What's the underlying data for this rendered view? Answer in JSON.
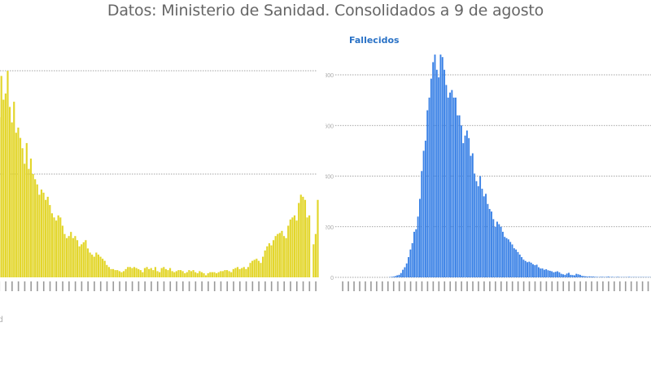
{
  "page": {
    "title": "Datos: Ministerio de Sanidad. Consolidados a 9 de agosto",
    "left_footer": "d"
  },
  "chart_data": [
    {
      "type": "bar",
      "title": "",
      "xlabel": "",
      "ylabel": "",
      "color": "#e3d62c",
      "grid": true,
      "gridline_units": [
        1,
        2
      ],
      "ylim": [
        0,
        2.1
      ],
      "note": "values in gridline units; y-axis labels cropped out of view",
      "tick_label_every": 3,
      "values": [
        1.55,
        1.95,
        1.72,
        1.78,
        2.0,
        1.65,
        1.5,
        1.7,
        1.4,
        1.45,
        1.35,
        1.25,
        1.1,
        1.3,
        1.05,
        1.15,
        1.0,
        0.95,
        0.9,
        0.8,
        0.85,
        0.82,
        0.75,
        0.78,
        0.7,
        0.62,
        0.58,
        0.55,
        0.6,
        0.58,
        0.5,
        0.42,
        0.38,
        0.4,
        0.44,
        0.38,
        0.4,
        0.36,
        0.3,
        0.32,
        0.34,
        0.36,
        0.28,
        0.24,
        0.22,
        0.2,
        0.24,
        0.22,
        0.2,
        0.18,
        0.16,
        0.12,
        0.1,
        0.08,
        0.08,
        0.07,
        0.07,
        0.06,
        0.05,
        0.06,
        0.08,
        0.1,
        0.1,
        0.09,
        0.1,
        0.09,
        0.08,
        0.07,
        0.05,
        0.09,
        0.1,
        0.08,
        0.09,
        0.07,
        0.1,
        0.06,
        0.05,
        0.09,
        0.1,
        0.08,
        0.07,
        0.09,
        0.06,
        0.05,
        0.06,
        0.07,
        0.07,
        0.06,
        0.04,
        0.05,
        0.07,
        0.06,
        0.07,
        0.05,
        0.04,
        0.06,
        0.05,
        0.04,
        0.02,
        0.04,
        0.05,
        0.05,
        0.05,
        0.04,
        0.05,
        0.06,
        0.06,
        0.07,
        0.07,
        0.06,
        0.05,
        0.08,
        0.09,
        0.1,
        0.08,
        0.09,
        0.1,
        0.08,
        0.1,
        0.14,
        0.16,
        0.17,
        0.18,
        0.16,
        0.14,
        0.2,
        0.26,
        0.3,
        0.33,
        0.31,
        0.36,
        0.4,
        0.42,
        0.43,
        0.45,
        0.4,
        0.38,
        0.5,
        0.56,
        0.58,
        0.6,
        0.55,
        0.72,
        0.8,
        0.78,
        0.75,
        0.58,
        0.6,
        0.0,
        0.32,
        0.42,
        0.75
      ]
    },
    {
      "type": "bar",
      "title": "Fallecidos",
      "xlabel": "",
      "ylabel": "",
      "color": "#3b82e6",
      "grid": true,
      "yticks": [
        0,
        200,
        400,
        600,
        800
      ],
      "ylim": [
        0,
        900
      ],
      "tick_label_every": 3,
      "values": [
        0,
        0,
        0,
        0,
        0,
        0,
        0,
        0,
        0,
        0,
        0,
        0,
        0,
        0,
        0,
        0,
        0,
        0,
        0,
        0,
        0,
        0,
        0,
        0,
        0,
        1,
        2,
        3,
        5,
        8,
        10,
        17,
        30,
        40,
        55,
        80,
        110,
        135,
        180,
        190,
        240,
        310,
        420,
        500,
        540,
        660,
        710,
        785,
        850,
        880,
        820,
        790,
        880,
        870,
        820,
        760,
        710,
        730,
        740,
        710,
        710,
        640,
        640,
        600,
        530,
        560,
        580,
        550,
        480,
        490,
        410,
        380,
        360,
        400,
        350,
        320,
        330,
        290,
        270,
        260,
        230,
        200,
        220,
        210,
        200,
        180,
        160,
        155,
        150,
        140,
        130,
        115,
        110,
        100,
        90,
        80,
        70,
        65,
        60,
        62,
        58,
        52,
        48,
        50,
        40,
        35,
        35,
        30,
        32,
        28,
        26,
        24,
        20,
        22,
        24,
        20,
        14,
        12,
        10,
        15,
        18,
        10,
        9,
        8,
        14,
        12,
        10,
        6,
        5,
        4,
        3,
        4,
        3,
        3,
        2,
        2,
        1,
        2,
        2,
        1,
        2,
        3,
        1,
        2,
        1,
        1,
        2,
        1,
        1,
        1,
        1,
        1,
        2,
        1,
        1,
        1,
        1,
        1,
        1,
        1,
        1,
        1,
        1,
        1
      ]
    }
  ]
}
